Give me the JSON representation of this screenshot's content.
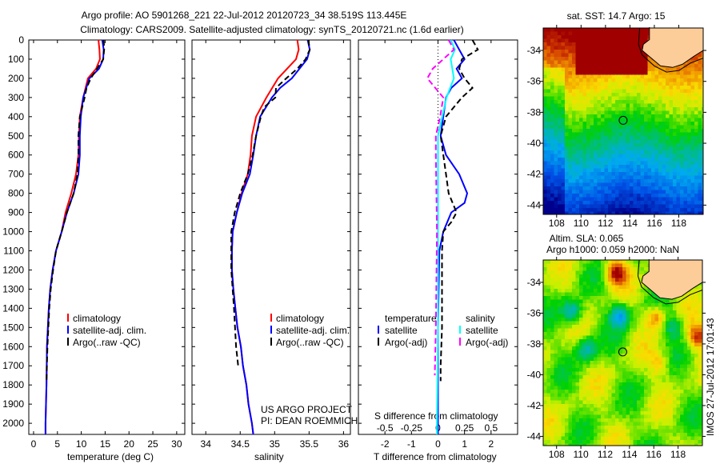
{
  "title": {
    "line1": "Argo profile: AO 5901268_221 22-Jul-2012 20120723_34 38.519S 113.445E",
    "line2": "Climatology: CARS2009. Satellite-adjusted climatology: synTS_20120721.nc (1.6d earlier)"
  },
  "colors": {
    "climatology": "#ff0000",
    "satellite": "#0000ff",
    "argo": "#000000",
    "sal_satellite": "#00ffff",
    "sal_argo": "#ff00ff",
    "land": "#fccc99"
  },
  "chart_data": [
    {
      "type": "line",
      "id": "temperature",
      "xlabel": "temperature (deg C)",
      "ylabel": "depth",
      "xlim": [
        -1,
        31.7
      ],
      "ylim": [
        2058,
        0
      ],
      "xticks": [
        "0",
        "5",
        "10",
        "15",
        "20",
        "25",
        "30"
      ],
      "xtick_values": [
        0,
        5,
        10,
        15,
        20,
        25,
        30
      ],
      "yticks": [
        "0",
        "100",
        "200",
        "300",
        "400",
        "500",
        "600",
        "700",
        "800",
        "900",
        "1000",
        "1100",
        "1200",
        "1300",
        "1400",
        "1500",
        "1600",
        "1700",
        "1800",
        "1900",
        "2000"
      ],
      "legend": [
        "climatology",
        "satellite-adj. clim.",
        "Argo(..raw -QC)"
      ],
      "series": [
        {
          "name": "climatology",
          "color": "#ff0000",
          "dash": false,
          "depth": [
            0,
            50,
            100,
            150,
            200,
            300,
            400,
            500,
            600,
            700,
            800,
            900,
            1000,
            1100,
            1200,
            1300,
            1400,
            1600,
            1800,
            2000,
            2058
          ],
          "values": [
            13.6,
            13.8,
            13.9,
            13.1,
            11.4,
            10.4,
            9.7,
            9.5,
            9.4,
            8.9,
            7.9,
            6.7,
            5.9,
            4.7,
            4.0,
            3.5,
            3.2,
            2.8,
            2.7,
            2.5,
            2.5
          ]
        },
        {
          "name": "satellite-adj. clim.",
          "color": "#0000ff",
          "dash": false,
          "depth": [
            0,
            50,
            100,
            150,
            200,
            300,
            400,
            500,
            600,
            700,
            800,
            900,
            1000,
            1100,
            1200,
            1300,
            1400,
            1600,
            1800,
            2000,
            2058
          ],
          "values": [
            14.4,
            14.7,
            14.6,
            13.7,
            11.7,
            10.4,
            9.9,
            9.7,
            9.7,
            9.4,
            8.4,
            7.0,
            5.9,
            4.7,
            4.0,
            3.5,
            3.2,
            2.8,
            2.7,
            2.5,
            2.5
          ]
        },
        {
          "name": "Argo(..raw -QC)",
          "color": "#000000",
          "dash": true,
          "depth": [
            0,
            50,
            100,
            200,
            250,
            300,
            400,
            500,
            600,
            700,
            800,
            900,
            1000,
            1100,
            1200,
            1300,
            1400,
            1600,
            1780
          ],
          "values": [
            14.7,
            14.8,
            14.6,
            12.0,
            11.1,
            10.7,
            9.7,
            9.4,
            9.4,
            9.2,
            8.4,
            7.0,
            5.9,
            4.7,
            4.1,
            3.6,
            3.3,
            2.9,
            2.7
          ]
        }
      ]
    },
    {
      "type": "line",
      "id": "salinity",
      "xlabel": "salinity",
      "xlim": [
        33.8,
        36.1
      ],
      "ylim": [
        2058,
        0
      ],
      "xticks": [
        "34",
        "34.5",
        "35",
        "35.5",
        "36"
      ],
      "xtick_values": [
        34,
        34.5,
        35,
        35.5,
        36
      ],
      "legend": [
        "climatology",
        "satellite-adj. clim.",
        "Argo(..raw -QC)"
      ],
      "annotations": [
        "US ARGO PROJECT",
        "PI: DEAN ROEMMICH"
      ],
      "series": [
        {
          "name": "climatology",
          "color": "#ff0000",
          "dash": false,
          "depth": [
            0,
            50,
            100,
            200,
            300,
            400,
            500,
            600,
            700,
            800,
            900,
            1000,
            1100,
            1200,
            1300,
            1400,
            1500,
            1600,
            1700,
            1800,
            1900,
            2000,
            2058
          ],
          "values": [
            35.33,
            35.35,
            35.31,
            35.05,
            34.88,
            34.73,
            34.67,
            34.65,
            34.61,
            34.52,
            34.45,
            34.39,
            34.38,
            34.38,
            34.4,
            34.43,
            34.46,
            34.51,
            34.54,
            34.59,
            34.62,
            34.67,
            34.69
          ]
        },
        {
          "name": "satellite-adj. clim.",
          "color": "#0000ff",
          "dash": false,
          "depth": [
            0,
            50,
            100,
            200,
            250,
            300,
            400,
            500,
            600,
            700,
            800,
            900,
            1000,
            1100,
            1200,
            1300,
            1400,
            1500,
            1600,
            1700,
            1800,
            1900,
            2000,
            2058
          ],
          "values": [
            35.48,
            35.51,
            35.47,
            35.25,
            35.08,
            34.96,
            34.79,
            34.73,
            34.69,
            34.64,
            34.53,
            34.45,
            34.39,
            34.38,
            34.38,
            34.4,
            34.43,
            34.46,
            34.51,
            34.54,
            34.59,
            34.62,
            34.67,
            34.69
          ]
        },
        {
          "name": "Argo(..raw -QC)",
          "color": "#000000",
          "dash": true,
          "depth": [
            0,
            50,
            100,
            150,
            200,
            250,
            300,
            350,
            400,
            500,
            600,
            700,
            800,
            900,
            1000,
            1200,
            1400,
            1600,
            1700
          ],
          "values": [
            35.49,
            35.51,
            35.45,
            35.33,
            35.17,
            35.02,
            35.01,
            34.85,
            34.8,
            34.73,
            34.68,
            34.61,
            34.5,
            34.42,
            34.37,
            34.37,
            34.41,
            34.44,
            34.47
          ]
        }
      ]
    },
    {
      "type": "line",
      "id": "differences",
      "xlabel": "T difference from climatology",
      "xlabel2": "S difference from climatology",
      "xlim": [
        -3,
        3
      ],
      "xticks": [
        "-2",
        "-1",
        "0",
        "1",
        "2"
      ],
      "xtick_values": [
        -2,
        -1,
        0,
        1,
        2
      ],
      "s_xticks": [
        "-0.5",
        "-0.25",
        "0",
        "0.25",
        "0.5"
      ],
      "s_xtick_values": [
        -0.5,
        -0.25,
        0,
        0.25,
        0.5
      ],
      "legend_headers": [
        "temperature",
        "salinity"
      ],
      "legend": [
        "satellite",
        "Argo(-adj)",
        "satellite",
        "Argo(-adj)"
      ],
      "series": [
        {
          "name": "temperature satellite",
          "quantity": "T",
          "color": "#0000ff",
          "dash": false,
          "depth": [
            0,
            50,
            100,
            150,
            200,
            250,
            300,
            400,
            500,
            600,
            700,
            800,
            850,
            900,
            1000,
            1100,
            1500,
            2000,
            2058
          ],
          "values": [
            0.6,
            0.8,
            1.0,
            0.7,
            0.9,
            0.5,
            0.3,
            0.2,
            0.1,
            0.3,
            0.8,
            1.1,
            1.0,
            0.5,
            0.2,
            0.05,
            0.0,
            0.0,
            0.0
          ]
        },
        {
          "name": "temperature Argo(-adj)",
          "quantity": "T",
          "color": "#000000",
          "dash": true,
          "depth": [
            0,
            50,
            100,
            150,
            200,
            250,
            300,
            400,
            500,
            700,
            800,
            900,
            950,
            1000,
            1100,
            1300,
            1500,
            1700,
            1780
          ],
          "values": [
            1.3,
            1.5,
            0.9,
            0.8,
            1.0,
            1.3,
            0.9,
            0.3,
            0.1,
            0.3,
            0.4,
            0.7,
            0.5,
            0.2,
            0.15,
            0.15,
            0.15,
            0.1,
            0.1
          ]
        },
        {
          "name": "salinity satellite",
          "quantity": "S",
          "color": "#00ffff",
          "dash": false,
          "depth": [
            0,
            50,
            100,
            200,
            300,
            400,
            500,
            1000,
            1500,
            2000,
            2058
          ],
          "values": [
            0.12,
            0.16,
            0.12,
            0.15,
            0.08,
            0.04,
            0.0,
            0.0,
            0.0,
            -0.01,
            -0.01
          ]
        },
        {
          "name": "salinity Argo(-adj)",
          "quantity": "S",
          "color": "#ff00ff",
          "dash": true,
          "depth": [
            0,
            50,
            100,
            150,
            200,
            300,
            400,
            500,
            600,
            1000,
            1500,
            1750
          ],
          "values": [
            0.1,
            0.15,
            0.05,
            -0.05,
            -0.1,
            0.05,
            0.02,
            -0.02,
            -0.02,
            -0.01,
            -0.02,
            -0.03
          ]
        }
      ]
    }
  ],
  "maps": [
    {
      "title": "sat. SST: 14.7 Argo: 15",
      "lon_ticks": [
        "108",
        "110",
        "112",
        "114",
        "116",
        "118"
      ],
      "lon_values": [
        108,
        110,
        112,
        114,
        116,
        118
      ],
      "lat_ticks": [
        "-34",
        "-36",
        "-38",
        "-40",
        "-42",
        "-44"
      ],
      "lat_values": [
        -34,
        -36,
        -38,
        -40,
        -42,
        -44
      ],
      "lon_range": [
        106.9,
        120
      ],
      "lat_range": [
        -32.55,
        -44.6
      ],
      "argo_position": [
        113.445,
        -38.519
      ]
    },
    {
      "title": "Altim. SLA: 0.065",
      "subtitle": "Argo h1000: 0.059 h2000: NaN",
      "lon_ticks": [
        "108",
        "110",
        "112",
        "114",
        "116",
        "118"
      ],
      "lon_values": [
        108,
        110,
        112,
        114,
        116,
        118
      ],
      "lat_ticks": [
        "-34",
        "-36",
        "-38",
        "-40",
        "-42",
        "-44"
      ],
      "lat_values": [
        -34,
        -36,
        -38,
        -40,
        -42,
        -44
      ],
      "lon_range": [
        106.9,
        120
      ],
      "lat_range": [
        -32.55,
        -44.6
      ],
      "argo_position": [
        113.445,
        -38.519
      ]
    }
  ],
  "footer": {
    "timestamp": "IMOS 27-Jul-2012 17:01:43"
  }
}
